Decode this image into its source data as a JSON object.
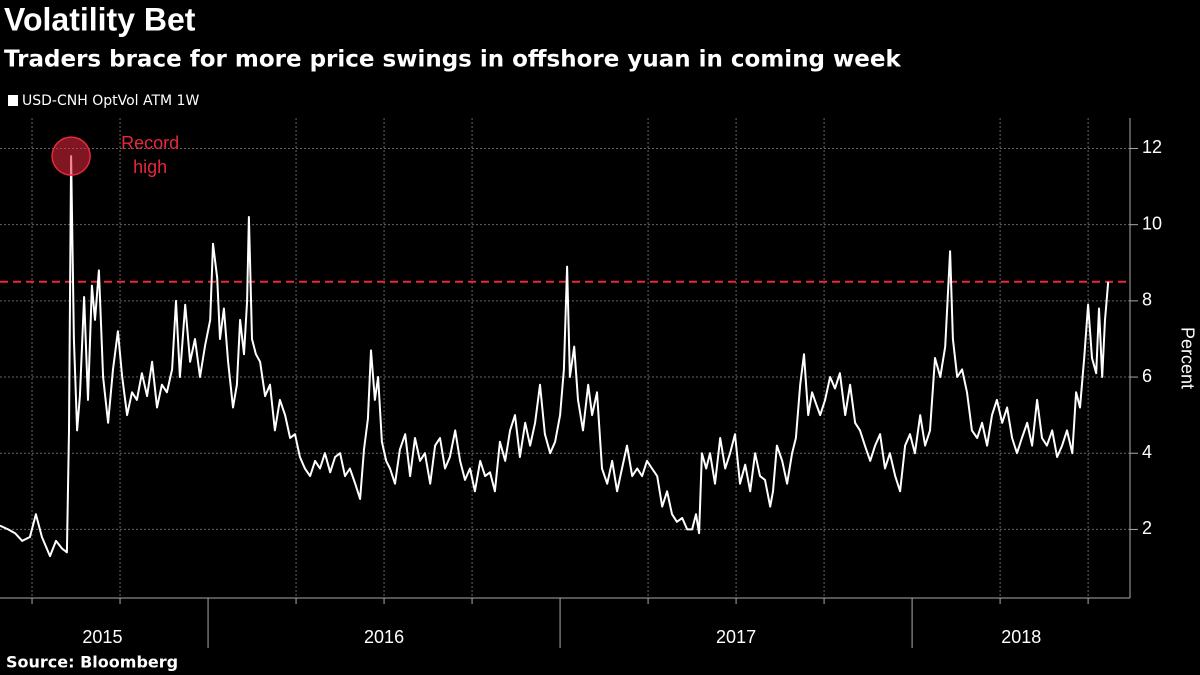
{
  "chart_data": {
    "type": "line",
    "title": "Volatility Bet",
    "subtitle": "Traders brace for more price swings in offshore yuan in coming week",
    "source": "Source: Bloomberg",
    "ylabel": "Percent",
    "ylim": [
      0.2,
      12.8
    ],
    "yticks": [
      2,
      4,
      6,
      8,
      10,
      12
    ],
    "xlim": [
      2015.409,
      2018.619
    ],
    "xticks": [
      {
        "value": 2015.7,
        "label": "2015"
      },
      {
        "value": 2016.5,
        "label": "2016"
      },
      {
        "value": 2017.5,
        "label": "2017"
      },
      {
        "value": 2018.31,
        "label": "2018"
      }
    ],
    "x_boundaries": [
      2016,
      2017,
      2018
    ],
    "xgrid": [
      2015.5,
      2015.75,
      2016.25,
      2016.5,
      2016.75,
      2017.25,
      2017.5,
      2017.75,
      2018.25,
      2018.5
    ],
    "grid": true,
    "legend": "top-left",
    "reference_line": {
      "value": 8.5,
      "color": "#e8283c",
      "style": "dashed"
    },
    "annotation": {
      "lines": [
        "Record",
        "high"
      ],
      "color": "#e8283c"
    },
    "x": [
      2015.409,
      2015.432,
      2015.452,
      2015.472,
      2015.494,
      2015.511,
      2015.528,
      2015.551,
      2015.568,
      2015.585,
      2015.599,
      2015.605,
      2015.611,
      2015.619,
      2015.628,
      2015.636,
      2015.648,
      2015.659,
      2015.67,
      2015.679,
      2015.69,
      2015.702,
      2015.716,
      2015.73,
      2015.744,
      2015.756,
      2015.77,
      2015.784,
      2015.798,
      2015.812,
      2015.827,
      2015.841,
      2015.855,
      2015.869,
      2015.883,
      2015.898,
      2015.909,
      2015.92,
      2015.935,
      2015.949,
      2015.963,
      2015.977,
      2015.991,
      2016.006,
      2016.014,
      2016.026,
      2016.034,
      2016.045,
      2016.057,
      2016.071,
      2016.082,
      2016.091,
      2016.102,
      2016.111,
      2016.116,
      2016.125,
      2016.136,
      2016.148,
      2016.162,
      2016.176,
      2016.19,
      2016.204,
      2016.219,
      2016.233,
      2016.247,
      2016.261,
      2016.275,
      2016.29,
      2016.304,
      2016.318,
      2016.332,
      2016.347,
      2016.361,
      2016.375,
      2016.389,
      2016.403,
      2016.418,
      2016.432,
      2016.443,
      2016.454,
      2016.463,
      2016.474,
      2016.483,
      2016.494,
      2016.506,
      2016.517,
      2016.531,
      2016.545,
      2016.56,
      2016.574,
      2016.588,
      2016.602,
      2016.616,
      2016.631,
      2016.645,
      2016.659,
      2016.673,
      2016.687,
      2016.702,
      2016.716,
      2016.73,
      2016.744,
      2016.758,
      2016.773,
      2016.787,
      2016.801,
      2016.815,
      2016.829,
      2016.844,
      2016.858,
      2016.872,
      2016.886,
      2016.901,
      2016.915,
      2016.929,
      2016.943,
      2016.957,
      2016.972,
      2016.986,
      2017.0,
      2017.011,
      2017.02,
      2017.028,
      2017.04,
      2017.051,
      2017.065,
      2017.08,
      2017.091,
      2017.105,
      2017.119,
      2017.134,
      2017.148,
      2017.162,
      2017.176,
      2017.19,
      2017.205,
      2017.219,
      2017.233,
      2017.247,
      2017.261,
      2017.276,
      2017.29,
      2017.304,
      2017.318,
      2017.332,
      2017.347,
      2017.361,
      2017.375,
      2017.386,
      2017.395,
      2017.403,
      2017.415,
      2017.426,
      2017.44,
      2017.455,
      2017.469,
      2017.483,
      2017.497,
      2017.511,
      2017.526,
      2017.54,
      2017.554,
      2017.568,
      2017.582,
      2017.597,
      2017.605,
      2017.616,
      2017.631,
      2017.645,
      2017.659,
      2017.67,
      2017.682,
      2017.693,
      2017.705,
      2017.716,
      2017.727,
      2017.739,
      2017.753,
      2017.767,
      2017.781,
      2017.795,
      2017.81,
      2017.824,
      2017.838,
      2017.852,
      2017.866,
      2017.881,
      2017.895,
      2017.909,
      2017.923,
      2017.937,
      2017.952,
      2017.966,
      2017.98,
      2017.994,
      2018.008,
      2018.023,
      2018.037,
      2018.051,
      2018.065,
      2018.08,
      2018.094,
      2018.108,
      2018.116,
      2018.128,
      2018.142,
      2018.156,
      2018.17,
      2018.185,
      2018.199,
      2018.213,
      2018.227,
      2018.241,
      2018.256,
      2018.27,
      2018.284,
      2018.298,
      2018.312,
      2018.327,
      2018.341,
      2018.355,
      2018.369,
      2018.383,
      2018.398,
      2018.412,
      2018.426,
      2018.44,
      2018.455,
      2018.466,
      2018.477,
      2018.489,
      2018.5,
      2018.511,
      2018.523,
      2018.531,
      2018.54,
      2018.548,
      2018.557
    ],
    "series": [
      {
        "name": "USD-CNH OptVol ATM 1W",
        "color": "#ffffff",
        "values": [
          2.1,
          2.0,
          1.9,
          1.7,
          1.8,
          2.4,
          1.8,
          1.3,
          1.7,
          1.5,
          1.4,
          4.6,
          11.8,
          7.0,
          4.6,
          5.5,
          8.1,
          5.4,
          8.4,
          7.5,
          8.8,
          6.0,
          4.8,
          6.2,
          7.2,
          6.0,
          5.0,
          5.6,
          5.4,
          6.1,
          5.5,
          6.4,
          5.2,
          5.8,
          5.6,
          6.2,
          8.0,
          6.0,
          7.9,
          6.4,
          7.0,
          6.0,
          6.8,
          7.5,
          9.5,
          8.6,
          7.0,
          7.8,
          6.4,
          5.2,
          5.8,
          7.5,
          6.6,
          8.0,
          10.2,
          7.0,
          6.6,
          6.4,
          5.5,
          5.8,
          4.6,
          5.4,
          5.0,
          4.4,
          4.5,
          3.9,
          3.6,
          3.4,
          3.8,
          3.6,
          4.0,
          3.5,
          3.9,
          4.0,
          3.4,
          3.6,
          3.2,
          2.8,
          4.1,
          4.9,
          6.7,
          5.4,
          6.0,
          4.3,
          3.8,
          3.6,
          3.2,
          4.1,
          4.5,
          3.4,
          4.4,
          3.8,
          4.0,
          3.2,
          4.2,
          4.4,
          3.6,
          3.9,
          4.6,
          3.8,
          3.3,
          3.6,
          3.0,
          3.8,
          3.4,
          3.5,
          3.0,
          4.3,
          3.8,
          4.6,
          5.0,
          3.9,
          4.8,
          4.2,
          4.8,
          5.8,
          4.5,
          4.0,
          4.3,
          5.0,
          6.2,
          8.9,
          6.0,
          6.8,
          5.4,
          4.6,
          5.8,
          5.0,
          5.6,
          3.6,
          3.2,
          3.8,
          3.0,
          3.6,
          4.2,
          3.4,
          3.6,
          3.4,
          3.8,
          3.6,
          3.4,
          2.6,
          3.0,
          2.4,
          2.2,
          2.3,
          2.0,
          2.0,
          2.4,
          1.9,
          4.0,
          3.6,
          4.0,
          3.2,
          4.4,
          3.6,
          4.0,
          4.5,
          3.2,
          3.7,
          3.0,
          4.0,
          3.4,
          3.3,
          2.6,
          3.0,
          4.2,
          3.8,
          3.2,
          4.0,
          4.4,
          5.8,
          6.6,
          5.0,
          5.6,
          5.3,
          5.0,
          5.4,
          6.0,
          5.7,
          6.1,
          5.0,
          5.8,
          4.8,
          4.6,
          4.2,
          3.8,
          4.2,
          4.5,
          3.6,
          4.0,
          3.4,
          3.0,
          4.2,
          4.5,
          4.0,
          5.0,
          4.2,
          4.6,
          6.5,
          6.0,
          6.8,
          9.3,
          7.0,
          6.0,
          6.2,
          5.6,
          4.6,
          4.4,
          4.8,
          4.2,
          5.0,
          5.4,
          4.8,
          5.2,
          4.4,
          4.0,
          4.4,
          4.8,
          4.2,
          5.4,
          4.4,
          4.2,
          4.6,
          3.9,
          4.2,
          4.6,
          4.0,
          5.6,
          5.2,
          6.5,
          7.9,
          6.5,
          6.1,
          7.8,
          6.0,
          7.5,
          8.5
        ]
      }
    ]
  }
}
